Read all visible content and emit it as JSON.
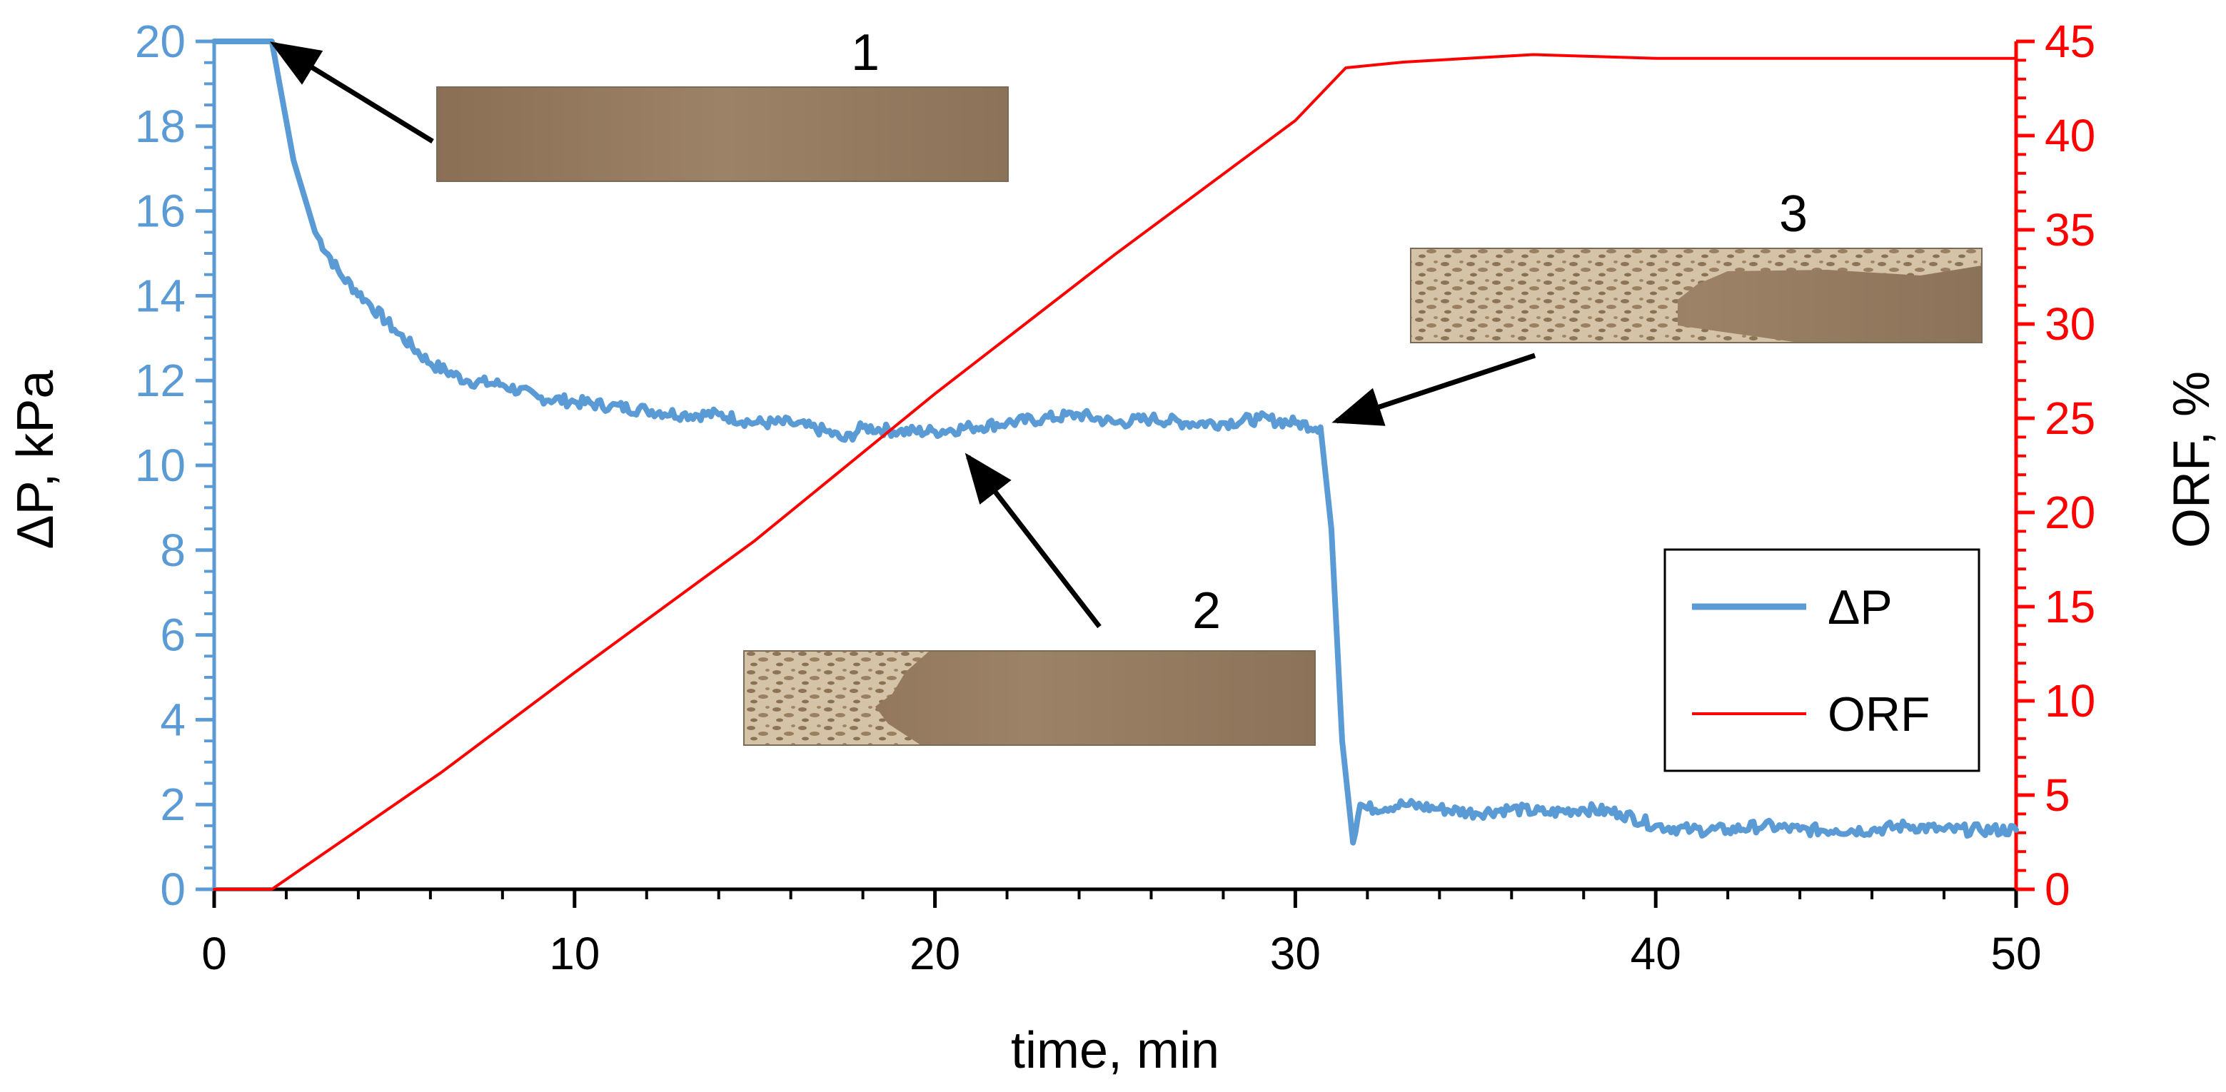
{
  "chart_data": {
    "type": "line",
    "x_axis": {
      "label": "time, min",
      "range": [
        0,
        50
      ],
      "major_ticks": [
        0,
        10,
        20,
        30,
        40,
        50
      ],
      "minor_step": 2
    },
    "y_left": {
      "label": "ΔP, kPa",
      "range": [
        0,
        20
      ],
      "major_ticks": [
        0,
        2,
        4,
        6,
        8,
        10,
        12,
        14,
        16,
        18,
        20
      ],
      "color": "#5B9BD5"
    },
    "y_right": {
      "label": "ORF, %",
      "range": [
        0,
        45
      ],
      "major_ticks": [
        0,
        5,
        10,
        15,
        20,
        25,
        30,
        35,
        40,
        45
      ],
      "color": "#FF0000"
    },
    "series": [
      {
        "name": "ΔP",
        "axis": "left",
        "color": "#5B9BD5",
        "x": [
          0,
          1.6,
          2.2,
          2.8,
          3.5,
          4.2,
          5,
          6,
          7,
          8,
          9,
          10,
          11,
          12,
          13,
          14,
          15,
          16,
          17,
          17.5,
          18,
          19,
          20,
          21,
          22,
          23,
          24,
          25,
          26,
          27,
          28,
          29,
          30,
          30.7,
          31,
          31.3,
          31.6,
          31.8,
          32,
          33,
          34,
          35,
          36,
          37,
          38,
          39,
          40,
          41,
          42,
          43,
          44,
          45,
          46,
          47,
          48,
          49,
          50
        ],
        "y": [
          20,
          20,
          17.2,
          15.5,
          14.5,
          13.9,
          13.2,
          12.4,
          12.0,
          11.9,
          11.6,
          11.5,
          11.4,
          11.3,
          11.2,
          11.2,
          11.0,
          11.0,
          10.8,
          10.6,
          10.9,
          10.8,
          10.8,
          10.9,
          11.0,
          11.1,
          11.2,
          11.0,
          11.1,
          11.0,
          11.0,
          11.1,
          11.0,
          10.9,
          8.5,
          3.5,
          1.1,
          2.0,
          1.9,
          2.0,
          1.9,
          1.8,
          1.9,
          1.8,
          1.9,
          1.8,
          1.5,
          1.4,
          1.4,
          1.5,
          1.4,
          1.4,
          1.4,
          1.5,
          1.4,
          1.4,
          1.4
        ]
      },
      {
        "name": "ORF",
        "axis": "right",
        "color": "#FF0000",
        "x": [
          0,
          1.6,
          6.3,
          10,
          15,
          20,
          25,
          30,
          31.4,
          33,
          36.6,
          40,
          45,
          50
        ],
        "y": [
          0,
          0,
          6.2,
          11.5,
          18.5,
          26.3,
          33.7,
          40.8,
          43.6,
          43.9,
          44.3,
          44.1,
          44.1,
          44.1
        ]
      }
    ],
    "legend": {
      "position": "bottom-right",
      "entries": [
        "ΔP",
        "ORF"
      ]
    },
    "annotations": [
      {
        "label": "1",
        "points_to_time": 1.6
      },
      {
        "label": "2",
        "points_to_time": 20.5
      },
      {
        "label": "3",
        "points_to_time": 30.8
      }
    ]
  }
}
